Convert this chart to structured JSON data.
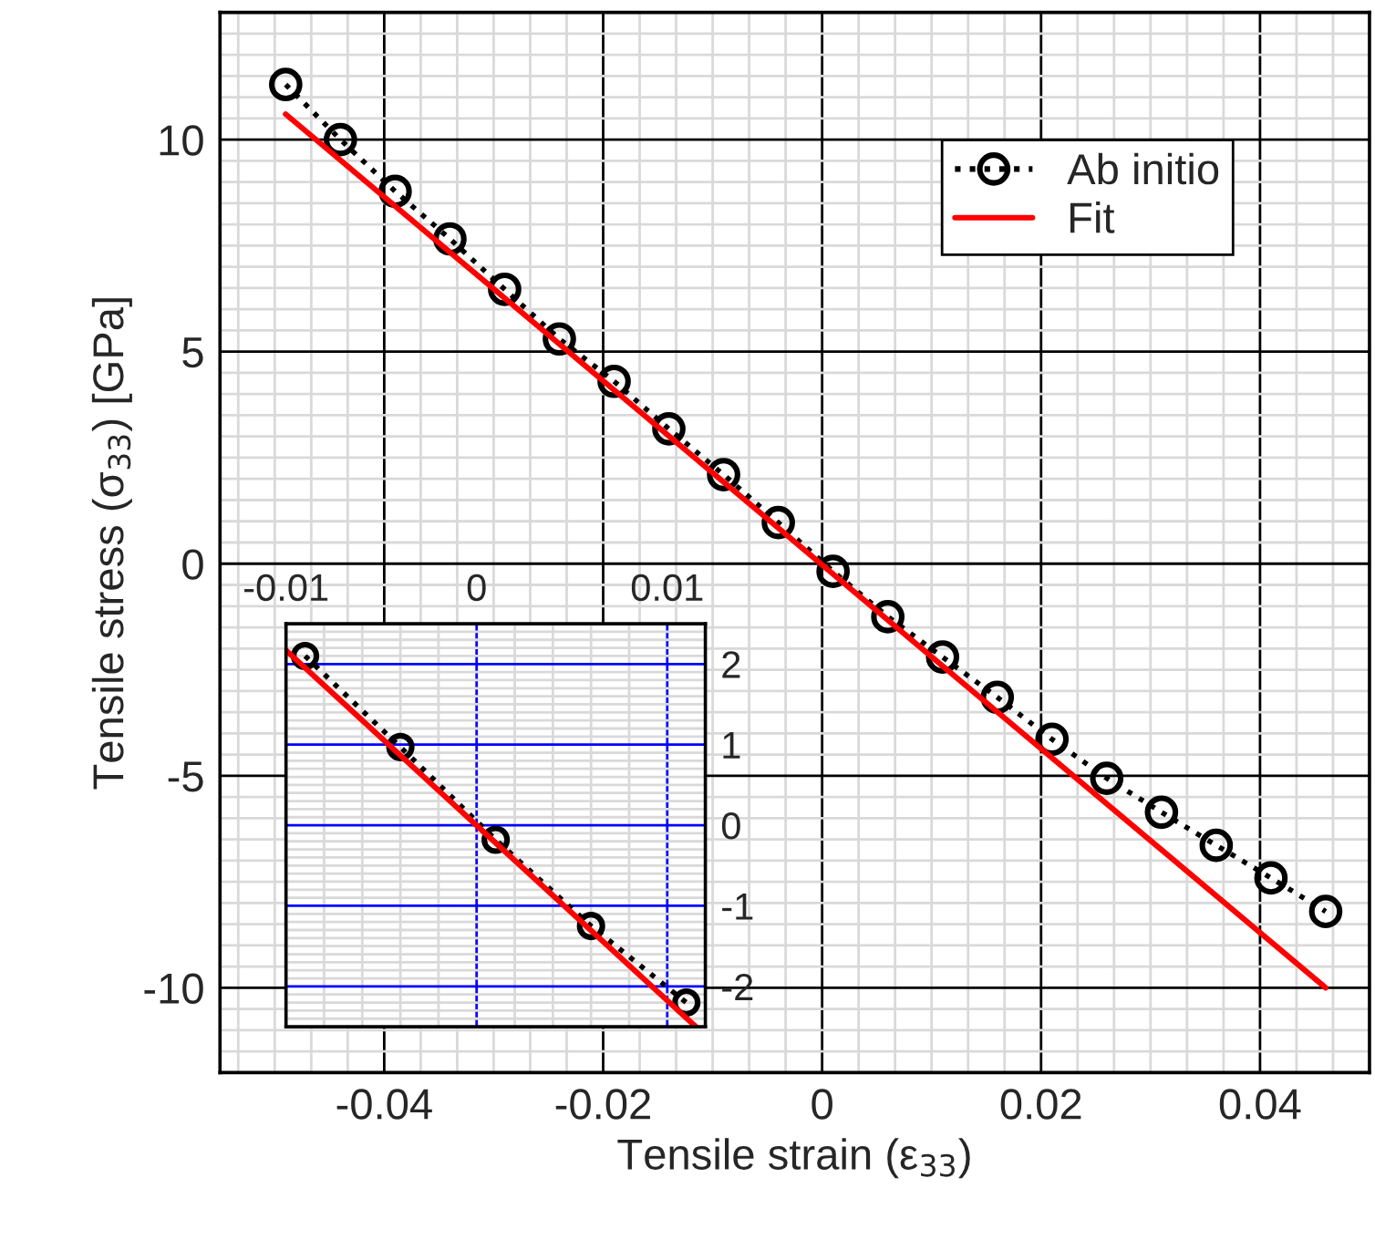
{
  "chart_data": [
    {
      "type": "line",
      "xlabel": "Tensile strain (ε$_{33}$)",
      "ylabel": "Tensile stress (σ$_{33}$) [GPa]",
      "xlim": [
        -0.055,
        0.05
      ],
      "xticks": [
        -0.04,
        -0.02,
        0,
        0.02,
        0.04
      ],
      "ylim": [
        -12,
        13
      ],
      "yticks": [
        -10,
        -5,
        0,
        5,
        10
      ],
      "grid": true,
      "legend": "top right",
      "series": [
        {
          "name": "Ab initio",
          "color": "#000000",
          "marker": "circle",
          "line_style": "dotted",
          "x": [
            -0.049,
            -0.044,
            -0.039,
            -0.034,
            -0.029,
            -0.024,
            -0.019,
            -0.014,
            -0.009,
            -0.004,
            0.001,
            0.006,
            0.011,
            0.016,
            0.021,
            0.026,
            0.031,
            0.036,
            0.041,
            0.046
          ],
          "values": [
            11.3,
            10.0,
            8.78,
            7.66,
            6.47,
            5.3,
            4.3,
            3.18,
            2.1,
            0.97,
            -0.18,
            -1.25,
            -2.2,
            -3.15,
            -4.14,
            -5.06,
            -5.86,
            -6.64,
            -7.41,
            -8.2
          ]
        },
        {
          "name": "Fit",
          "color": "#ff0000",
          "marker": "none",
          "line_style": "solid",
          "x": [
            -0.049,
            0.046
          ],
          "values": [
            10.6,
            -10.0
          ]
        }
      ]
    },
    {
      "type": "line",
      "xlim": [
        -0.01,
        0.012
      ],
      "xticks": [
        -0.01,
        0,
        0.01
      ],
      "ylim": [
        -2.5,
        2.5
      ],
      "yticks": [
        -2,
        -1,
        0,
        1,
        2
      ],
      "grid": true,
      "legend": false,
      "series": [
        {
          "color": "#000000",
          "marker": "circle",
          "line_style": "dotted",
          "x": [
            -0.009,
            -0.004,
            0.001,
            0.006,
            0.011
          ],
          "values": [
            2.1,
            0.97,
            -0.18,
            -1.25,
            -2.2
          ]
        },
        {
          "color": "#ff0000",
          "marker": "none",
          "line_style": "solid",
          "x": [
            -0.01,
            0.0115
          ],
          "values": [
            2.17,
            -2.5
          ]
        }
      ]
    }
  ]
}
